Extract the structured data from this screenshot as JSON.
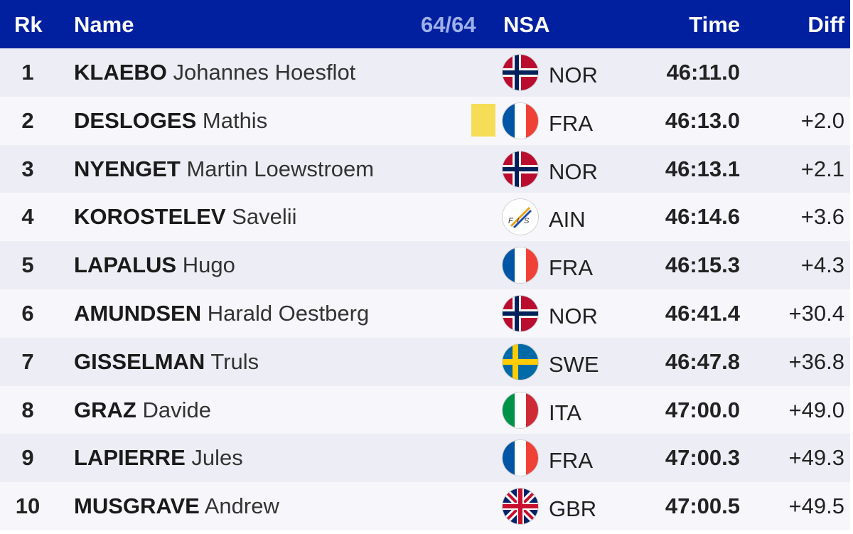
{
  "header": {
    "rank": "Rk",
    "name": "Name",
    "count": "64/64",
    "nsa": "NSA",
    "time": "Time",
    "diff": "Diff"
  },
  "rows": [
    {
      "rank": "1",
      "last": "KLAEBO",
      "first": "Johannes Hoesflot",
      "nsa": "NOR",
      "flag": "norway-flag-icon",
      "time": "46:11.0",
      "diff": ""
    },
    {
      "rank": "2",
      "last": "DESLOGES",
      "first": "Mathis",
      "nsa": "FRA",
      "flag": "france-flag-icon",
      "time": "46:13.0",
      "diff": "+2.0"
    },
    {
      "rank": "3",
      "last": "NYENGET",
      "first": "Martin Loewstroem",
      "nsa": "NOR",
      "flag": "norway-flag-icon",
      "time": "46:13.1",
      "diff": "+2.1"
    },
    {
      "rank": "4",
      "last": "KOROSTELEV",
      "first": "Savelii",
      "nsa": "AIN",
      "flag": "fis-logo-icon",
      "time": "46:14.6",
      "diff": "+3.6"
    },
    {
      "rank": "5",
      "last": "LAPALUS",
      "first": "Hugo",
      "nsa": "FRA",
      "flag": "france-flag-icon",
      "time": "46:15.3",
      "diff": "+4.3"
    },
    {
      "rank": "6",
      "last": "AMUNDSEN",
      "first": "Harald Oestberg",
      "nsa": "NOR",
      "flag": "norway-flag-icon",
      "time": "46:41.4",
      "diff": "+30.4"
    },
    {
      "rank": "7",
      "last": "GISSELMAN",
      "first": "Truls",
      "nsa": "SWE",
      "flag": "sweden-flag-icon",
      "time": "46:47.8",
      "diff": "+36.8"
    },
    {
      "rank": "8",
      "last": "GRAZ",
      "first": "Davide",
      "nsa": "ITA",
      "flag": "italy-flag-icon",
      "time": "47:00.0",
      "diff": "+49.0"
    },
    {
      "rank": "9",
      "last": "LAPIERRE",
      "first": "Jules",
      "nsa": "FRA",
      "flag": "france-flag-icon",
      "time": "47:00.3",
      "diff": "+49.3"
    },
    {
      "rank": "10",
      "last": "MUSGRAVE",
      "first": "Andrew",
      "nsa": "GBR",
      "flag": "uk-flag-icon",
      "time": "47:00.5",
      "diff": "+49.5"
    }
  ],
  "colors": {
    "header_bg": "#00209f",
    "row_odd": "#ededf5",
    "row_even": "#f7f7fb",
    "yellow_bib": "#f6dd56"
  }
}
